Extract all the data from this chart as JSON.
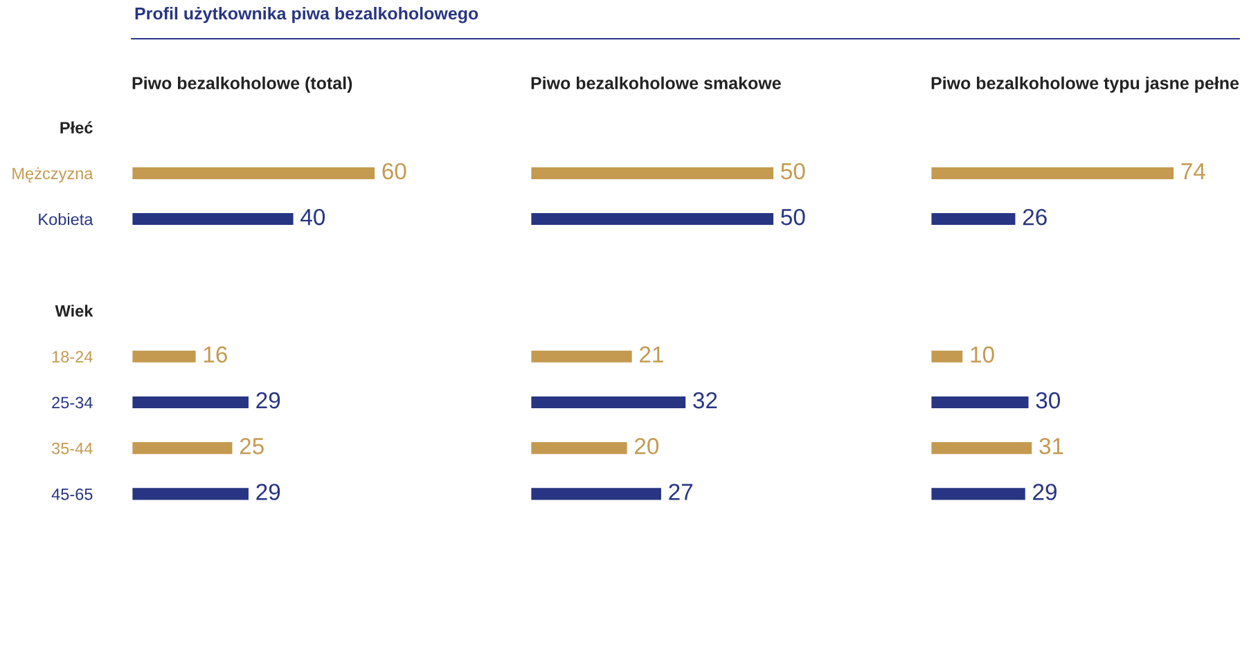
{
  "chart_data": [
    {
      "type": "bar",
      "orientation": "horizontal",
      "title": "Piwo bezalkoholowe (total)",
      "annotations": [
        "Profil użytkownika piwa bezalkoholowego"
      ],
      "categories": [
        "Płeć",
        "Mężczyzna",
        "Kobieta",
        null,
        "Wiek",
        "18-24",
        "25-34",
        "35-44",
        "45-65"
      ],
      "values": [
        null,
        60,
        40,
        null,
        null,
        16,
        29,
        25,
        29
      ],
      "colors": [
        "#222222",
        "#c49a50",
        "#283583",
        "#222222",
        "#222222",
        "#c49a50",
        "#283583",
        "#c49a50",
        "#283583"
      ],
      "data_labels": true,
      "tick_labels": "y",
      "grid": false,
      "legend": false
    },
    {
      "type": "bar",
      "orientation": "horizontal",
      "title": "Piwo bezalkoholowe smakowe",
      "values": [
        null,
        50,
        50,
        null,
        null,
        21,
        32,
        20,
        27
      ],
      "colors": [
        "#222222",
        "#c49a50",
        "#283583",
        "#222222",
        "#222222",
        "#c49a50",
        "#283583",
        "#c49a50",
        "#283583"
      ],
      "data_labels": true,
      "tick_labels": false,
      "grid": false,
      "legend": false
    },
    {
      "type": "bar",
      "orientation": "horizontal",
      "title": "Piwo bezalkoholowe typu jasne pełne",
      "values": [
        null,
        74,
        26,
        null,
        null,
        10,
        30,
        31,
        29
      ],
      "colors": [
        "#222222",
        "#c49a50",
        "#283583",
        "#222222",
        "#222222",
        "#c49a50",
        "#283583",
        "#c49a50",
        "#283583"
      ],
      "data_labels": true,
      "tick_labels": false,
      "grid": false,
      "legend": false
    }
  ]
}
